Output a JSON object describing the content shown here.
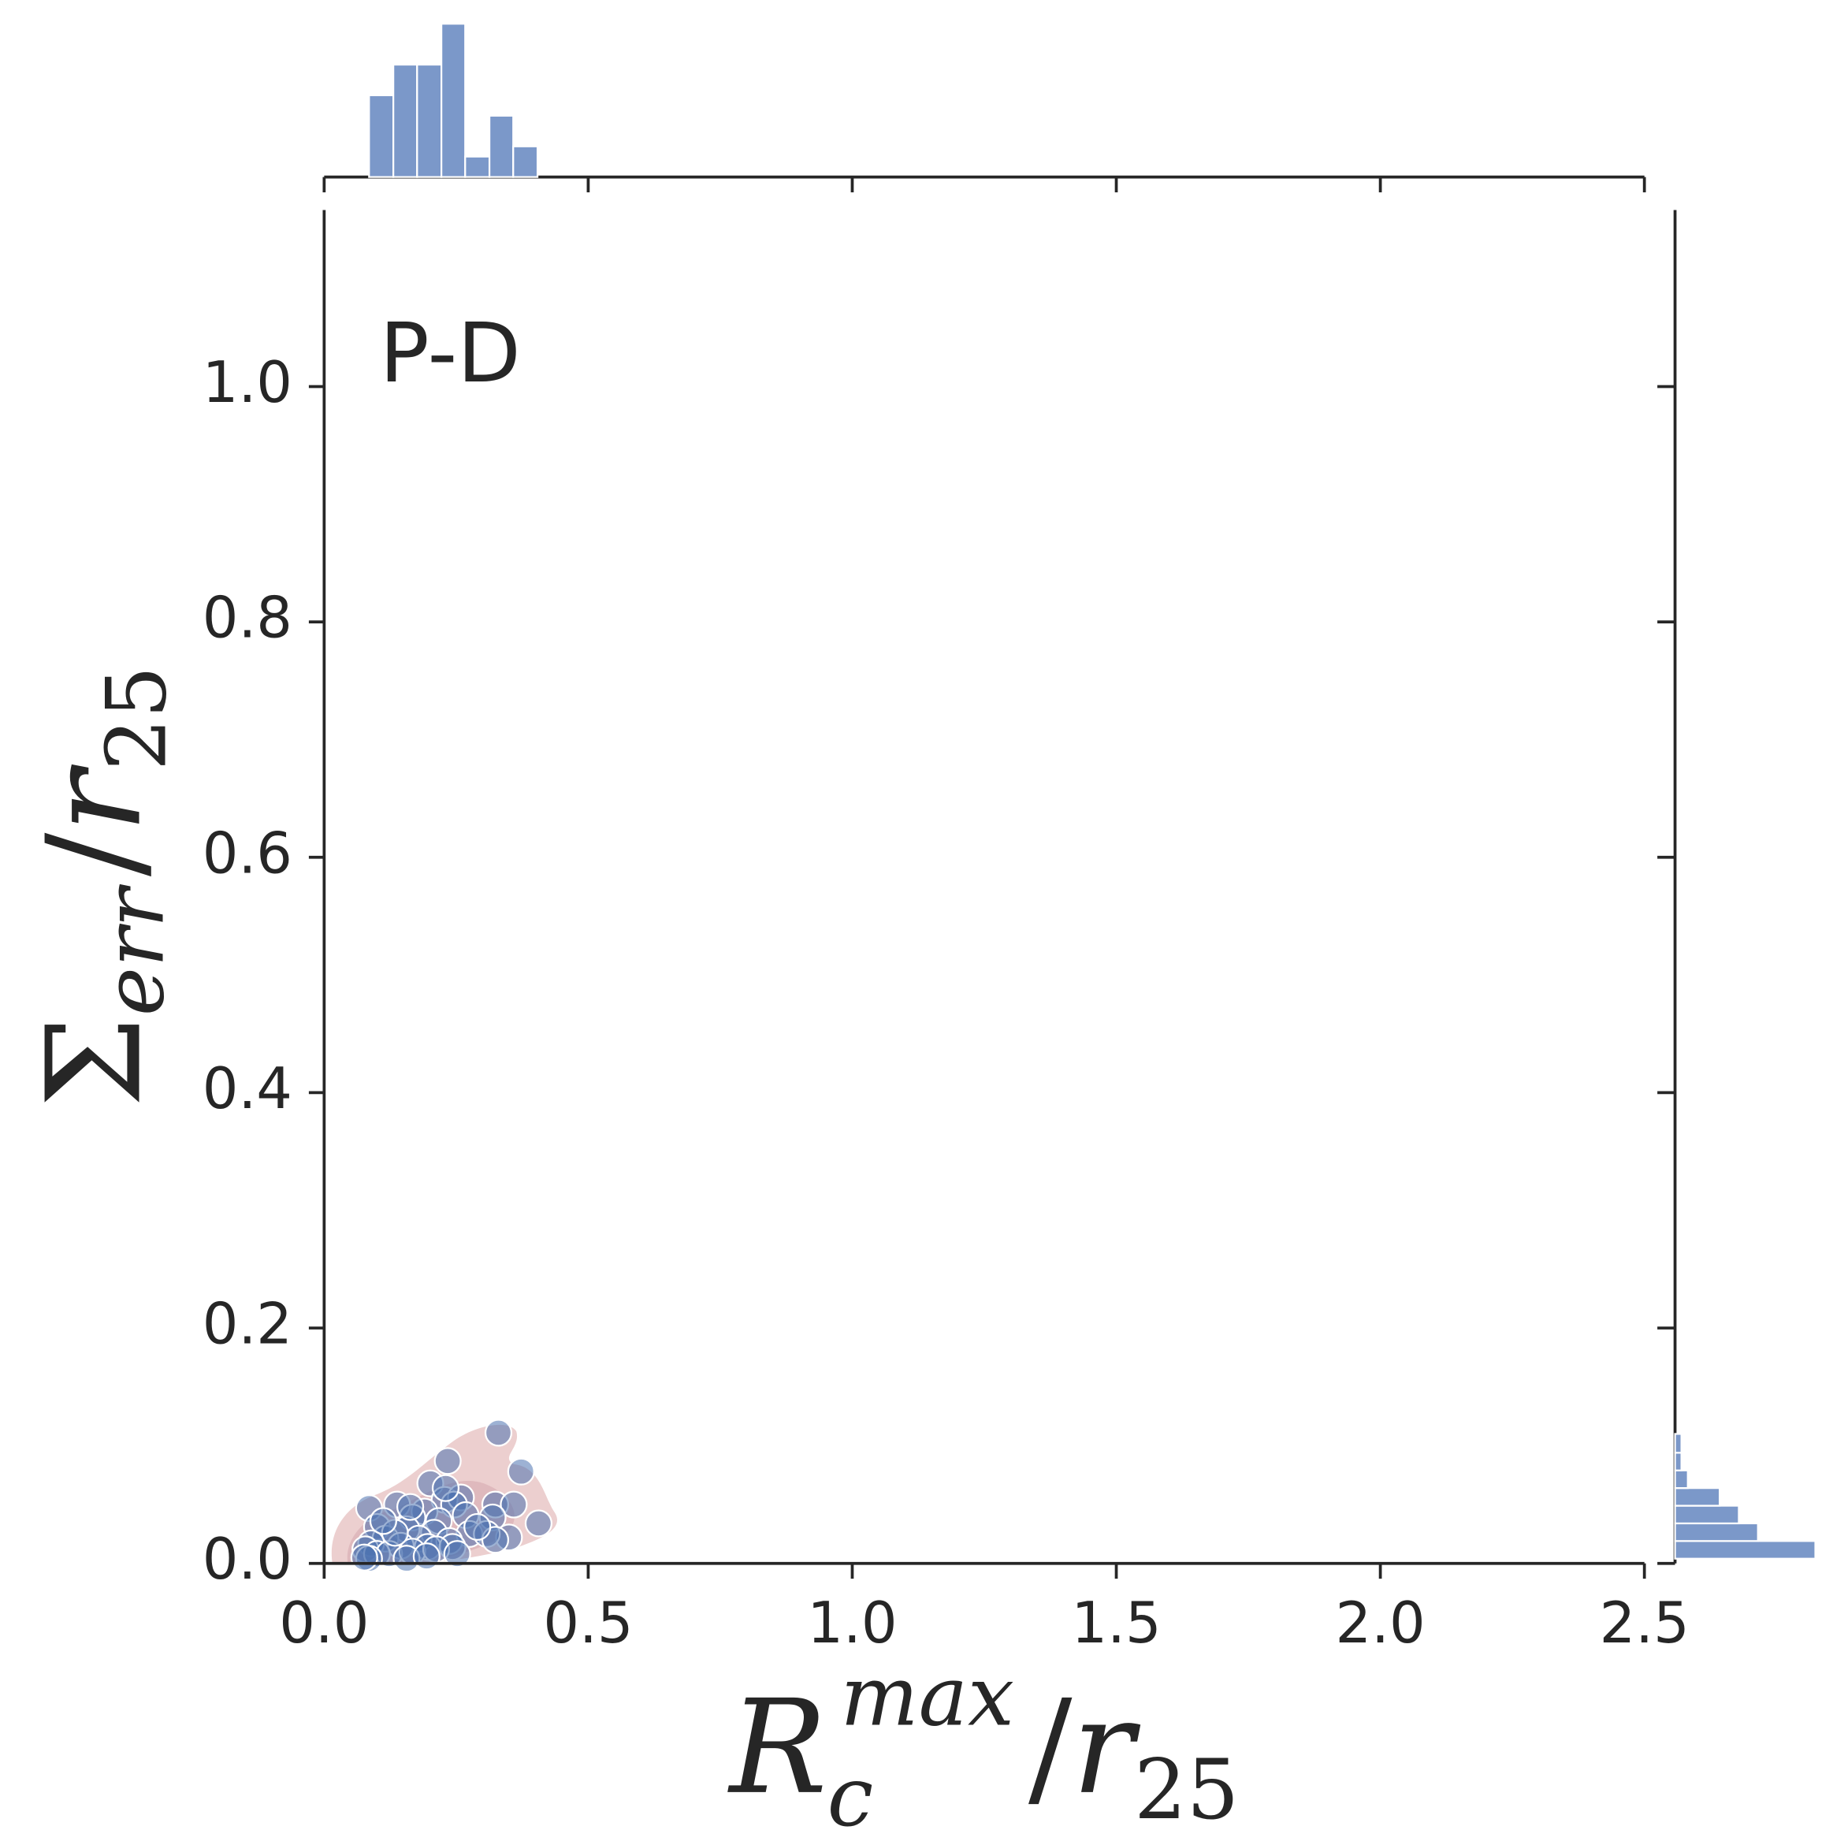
{
  "chart_data": {
    "type": "scatter",
    "annotation": "P-D",
    "xlabel": {
      "symbol": "R",
      "sub": "c",
      "sup": "max",
      "divider": "/",
      "over": "r",
      "over_sub": "25"
    },
    "ylabel": {
      "symbol": "Σ",
      "sub": "err",
      "divider": "/",
      "over": "r",
      "over_sub": "25"
    },
    "xlim": [
      0,
      2.5
    ],
    "ylim": [
      0,
      1.15
    ],
    "xticks": [
      {
        "value": 0,
        "label": "0.0"
      },
      0.5,
      {
        "value": 1,
        "label": "1.0"
      },
      1.5,
      {
        "value": 2,
        "label": "2.0"
      },
      2.5
    ],
    "yticks": [
      {
        "value": 0,
        "label": "0.0"
      },
      0.2,
      0.4,
      0.6,
      0.8,
      {
        "value": 1,
        "label": "1.0"
      }
    ],
    "color": "#4c72b0",
    "x": [
      0.33,
      0.234,
      0.373,
      0.201,
      0.085,
      0.138,
      0.324,
      0.359,
      0.228,
      0.259,
      0.246,
      0.19,
      0.167,
      0.217,
      0.268,
      0.319,
      0.406,
      0.1,
      0.156,
      0.208,
      0.275,
      0.35,
      0.308,
      0.116,
      0.179,
      0.237,
      0.089,
      0.145,
      0.196,
      0.243,
      0.324,
      0.078,
      0.1,
      0.123,
      0.167,
      0.212,
      0.252,
      0.085,
      0.156,
      0.194,
      0.076,
      0.134,
      0.163,
      0.23,
      0.112,
      0.29
    ],
    "y": [
      0.111,
      0.087,
      0.078,
      0.068,
      0.047,
      0.05,
      0.05,
      0.05,
      0.054,
      0.056,
      0.05,
      0.044,
      0.039,
      0.036,
      0.041,
      0.039,
      0.034,
      0.031,
      0.029,
      0.026,
      0.025,
      0.022,
      0.025,
      0.021,
      0.021,
      0.019,
      0.017,
      0.015,
      0.014,
      0.014,
      0.02,
      0.012,
      0.008,
      0.008,
      0.01,
      0.012,
      0.008,
      0.004,
      0.004,
      0.006,
      0.005,
      0.026,
      0.048,
      0.064,
      0.036,
      0.031
    ],
    "top_hist": {
      "bins": [
        0.085,
        0.131,
        0.176,
        0.222,
        0.267,
        0.313,
        0.358,
        0.404
      ],
      "counts": [
        8,
        11,
        11,
        15,
        2,
        6,
        3
      ],
      "color": "#7b98c9"
    },
    "right_hist": {
      "bins": [
        0.004,
        0.019,
        0.034,
        0.049,
        0.064,
        0.079,
        0.094,
        0.11
      ],
      "counts": [
        22,
        13,
        10,
        7,
        2,
        1,
        1
      ],
      "color": "#7b98c9"
    }
  }
}
